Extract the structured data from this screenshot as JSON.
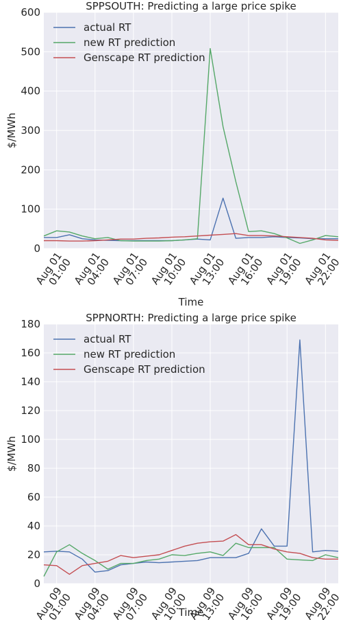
{
  "colors": {
    "actual": "#4c72b0",
    "new": "#55a868",
    "genscape": "#c44e52",
    "plot_bg": "#eaeaf2",
    "grid": "#ffffff"
  },
  "chart_data": [
    {
      "type": "line",
      "title": "SPPSOUTH: Predicting a large price spike",
      "xlabel": "Time",
      "ylabel": "$/MWh",
      "ylim": [
        0,
        600
      ],
      "yticks": [
        0,
        100,
        200,
        300,
        400,
        500,
        600
      ],
      "grid": true,
      "legend": "top-left",
      "x_hours": [
        0,
        1,
        2,
        3,
        4,
        5,
        6,
        7,
        8,
        9,
        10,
        11,
        12,
        13,
        14,
        15,
        16,
        17,
        18,
        19,
        20,
        21,
        22,
        23
      ],
      "x_ticks": [
        {
          "hour": 1,
          "line1": "Aug 01",
          "line2": "01:00"
        },
        {
          "hour": 4,
          "line1": "Aug 01",
          "line2": "04:00"
        },
        {
          "hour": 7,
          "line1": "Aug 01",
          "line2": "07:00"
        },
        {
          "hour": 10,
          "line1": "Aug 01",
          "line2": "10:00"
        },
        {
          "hour": 13,
          "line1": "Aug 01",
          "line2": "13:00"
        },
        {
          "hour": 16,
          "line1": "Aug 01",
          "line2": "16:00"
        },
        {
          "hour": 19,
          "line1": "Aug 01",
          "line2": "19:00"
        },
        {
          "hour": 22,
          "line1": "Aug 01",
          "line2": "22:00"
        }
      ],
      "series": [
        {
          "name": "actual RT",
          "color_key": "actual",
          "values": [
            28,
            28,
            35,
            25,
            22,
            21,
            20,
            20,
            20,
            20,
            20,
            22,
            24,
            22,
            128,
            26,
            28,
            28,
            30,
            28,
            27,
            25,
            25,
            25
          ]
        },
        {
          "name": "new RT prediction",
          "color_key": "new",
          "values": [
            32,
            45,
            42,
            32,
            25,
            28,
            20,
            19,
            19,
            19,
            20,
            22,
            25,
            508,
            310,
            170,
            43,
            45,
            38,
            27,
            13,
            22,
            33,
            30
          ]
        },
        {
          "name": "Genscape RT prediction",
          "color_key": "genscape",
          "values": [
            20,
            20,
            19,
            19,
            20,
            22,
            24,
            24,
            26,
            27,
            29,
            30,
            32,
            34,
            36,
            38,
            33,
            33,
            32,
            30,
            28,
            26,
            22,
            21
          ]
        }
      ]
    },
    {
      "type": "line",
      "title": "SPPNORTH: Predicting a large price spike",
      "xlabel": "Time",
      "ylabel": "$/MWh",
      "ylim": [
        0,
        180
      ],
      "yticks": [
        0,
        20,
        40,
        60,
        80,
        100,
        120,
        140,
        160,
        180
      ],
      "grid": true,
      "legend": "top-left",
      "x_hours": [
        0,
        1,
        2,
        3,
        4,
        5,
        6,
        7,
        8,
        9,
        10,
        11,
        12,
        13,
        14,
        15,
        16,
        17,
        18,
        19,
        20,
        21,
        22,
        23
      ],
      "x_ticks": [
        {
          "hour": 1,
          "line1": "Aug 09",
          "line2": "01:00"
        },
        {
          "hour": 4,
          "line1": "Aug 09",
          "line2": "04:00"
        },
        {
          "hour": 7,
          "line1": "Aug 09",
          "line2": "07:00"
        },
        {
          "hour": 10,
          "line1": "Aug 09",
          "line2": "10:00"
        },
        {
          "hour": 13,
          "line1": "Aug 09",
          "line2": "13:00"
        },
        {
          "hour": 16,
          "line1": "Aug 09",
          "line2": "16:00"
        },
        {
          "hour": 19,
          "line1": "Aug 09",
          "line2": "19:00"
        },
        {
          "hour": 22,
          "line1": "Aug 09",
          "line2": "22:00"
        }
      ],
      "series": [
        {
          "name": "actual RT",
          "color_key": "actual",
          "values": [
            22,
            22.5,
            22,
            17,
            8,
            9,
            13,
            14,
            15,
            14.5,
            15,
            15.5,
            16,
            18,
            18,
            18,
            21,
            38,
            26,
            26,
            169,
            22,
            23,
            22.5
          ]
        },
        {
          "name": "new RT prediction",
          "color_key": "new",
          "values": [
            5,
            22,
            27,
            21,
            16,
            10,
            14,
            14,
            16,
            17,
            20,
            19.5,
            21,
            22,
            19.5,
            28,
            25,
            25,
            25,
            17,
            16.5,
            16,
            20,
            18
          ]
        },
        {
          "name": "Genscape RT prediction",
          "color_key": "genscape",
          "values": [
            13,
            12.5,
            6.5,
            12.5,
            14,
            15.5,
            19.5,
            18,
            19,
            20,
            23,
            26,
            28,
            29,
            29.5,
            34,
            27,
            27,
            24,
            22,
            21,
            18,
            17,
            17
          ]
        }
      ]
    }
  ]
}
